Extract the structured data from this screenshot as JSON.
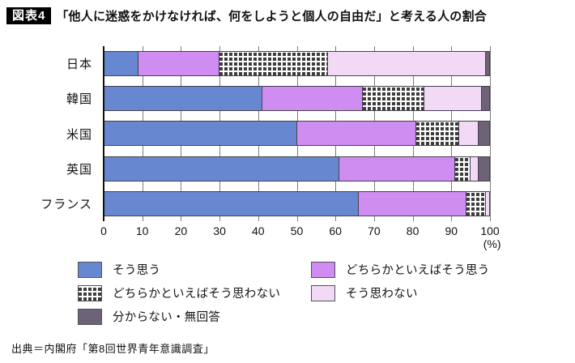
{
  "header": {
    "badge": "図表4",
    "title": "「他人に迷惑をかけなければ、何をしようと個人の自由だ」と考える人の割合"
  },
  "chart_data": {
    "type": "bar",
    "orientation": "horizontal",
    "stacked": true,
    "title": "「他人に迷惑をかけなければ、何をしようと個人の自由だ」と考える人の割合",
    "categories": [
      "日本",
      "韓国",
      "米国",
      "英国",
      "フランス"
    ],
    "series": [
      {
        "name": "そう思う",
        "color": "#6787d1",
        "values": [
          9,
          41,
          50,
          61,
          66
        ]
      },
      {
        "name": "どちらかといえばそう思う",
        "color": "#cf8df2",
        "values": [
          21,
          26,
          31,
          30,
          28
        ]
      },
      {
        "name": "どちらかといえばそう思わない",
        "color": "#ffffff",
        "pattern": "small-dark-squares",
        "values": [
          28,
          16,
          11,
          4,
          5
        ]
      },
      {
        "name": "そう思わない",
        "color": "#f2daf6",
        "values": [
          41,
          15,
          5,
          2,
          1
        ]
      },
      {
        "name": "分からない・無回答",
        "color": "#6e6276",
        "values": [
          1,
          2,
          3,
          3,
          0
        ]
      }
    ],
    "xlim": [
      0,
      100
    ],
    "x_ticks": [
      0,
      10,
      20,
      30,
      40,
      50,
      60,
      70,
      80,
      90,
      100
    ],
    "x_unit": "(%)",
    "grid": true,
    "legend_position": "bottom"
  },
  "footer": {
    "source": "出典＝内閣府「第8回世界青年意識調査」"
  }
}
